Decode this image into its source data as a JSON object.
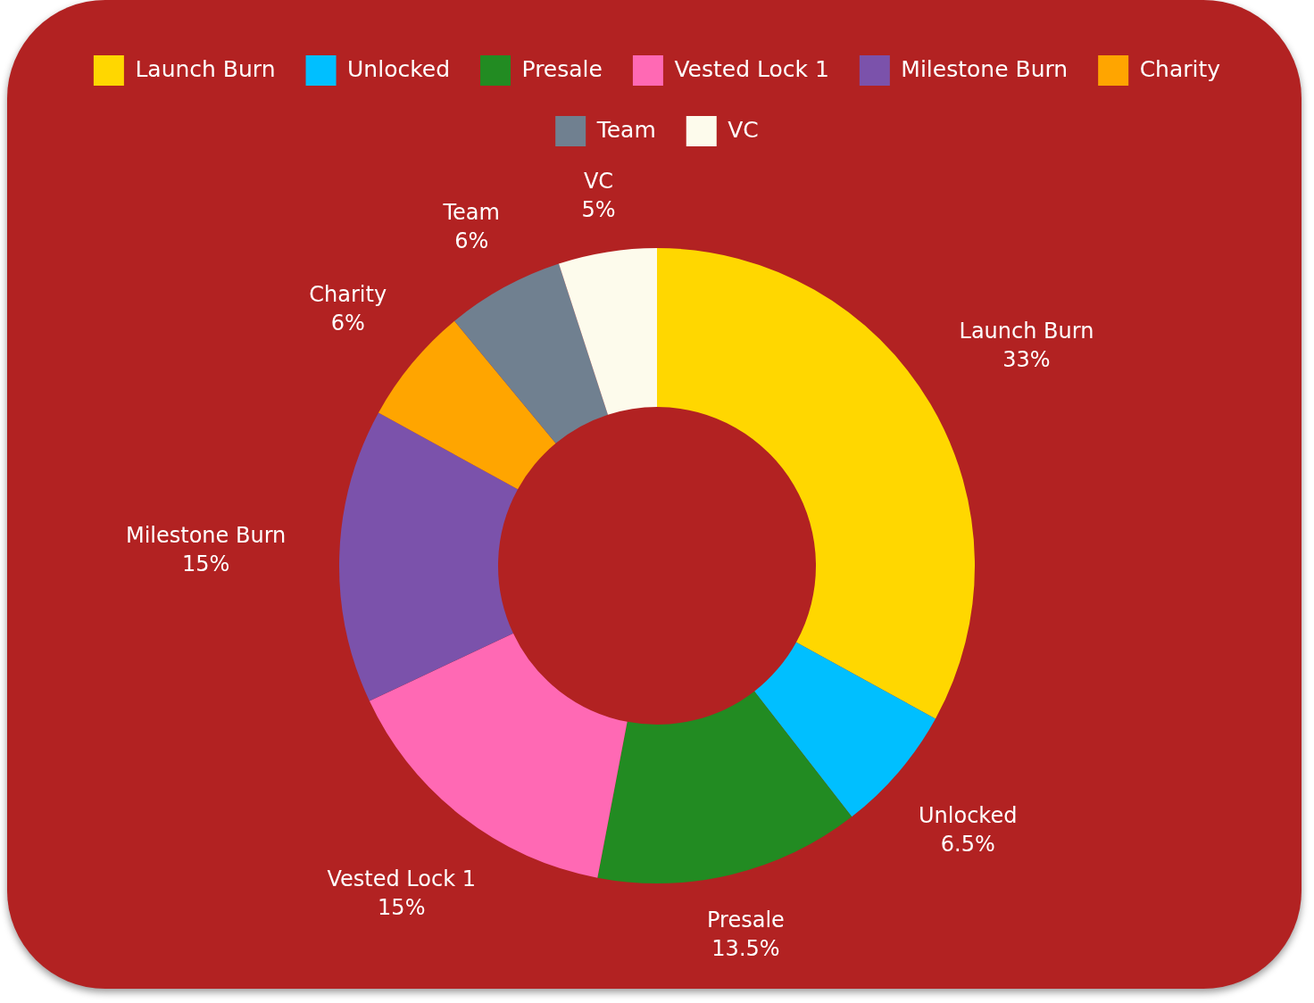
{
  "chart_data": {
    "type": "donut",
    "categories": [
      "Launch Burn",
      "Unlocked",
      "Presale",
      "Vested Lock 1",
      "Milestone Burn",
      "Charity",
      "Team",
      "VC"
    ],
    "values": [
      33,
      6.5,
      13.5,
      15,
      15,
      6,
      6,
      5
    ],
    "value_labels": [
      "33%",
      "6.5%",
      "13.5%",
      "15%",
      "15%",
      "6%",
      "6%",
      "5%"
    ],
    "colors": [
      "#ffd700",
      "#00bfff",
      "#228b22",
      "#ff69b4",
      "#7b52ab",
      "#ffa500",
      "#708090",
      "#fdfbec"
    ],
    "legend": "top"
  }
}
